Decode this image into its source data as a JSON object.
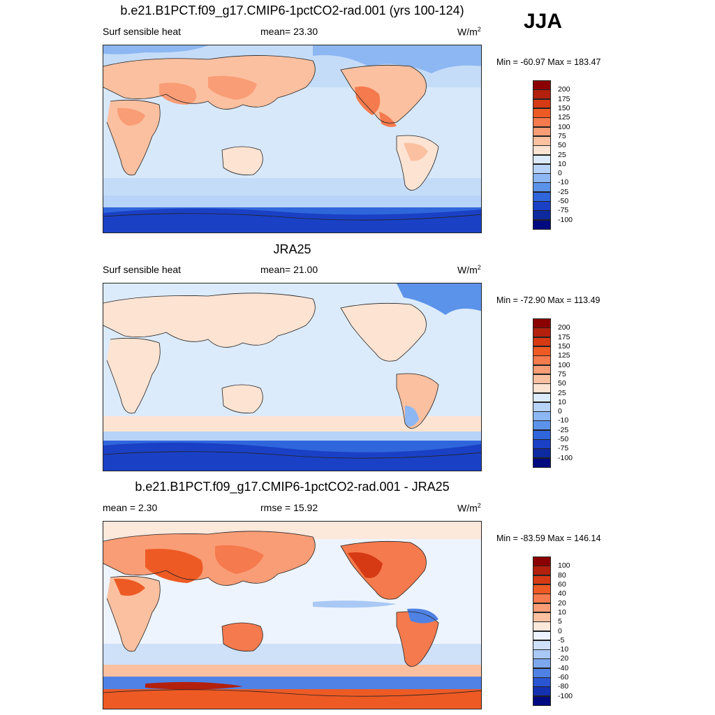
{
  "season": "JJA",
  "panels": [
    {
      "title": "b.e21.B1PCT.f09_g17.CMIP6-1pctCO2-rad.001 (yrs 100-124)",
      "left_label": "Surf sensible heat",
      "mid_label": "mean=  23.30",
      "units": "W/m",
      "units_sup": "2",
      "minmax": "Min = -60.97 Max = 183.47",
      "colorbar": {
        "labels": [
          "200",
          "175",
          "150",
          "125",
          "100",
          "75",
          "50",
          "25",
          "10",
          "0",
          "-10",
          "-25",
          "-50",
          "-75",
          "-100"
        ],
        "colors": [
          "#8b0000",
          "#b3200d",
          "#d63a14",
          "#ee5a24",
          "#f57a4d",
          "#f99d76",
          "#fbc0a0",
          "#fde3d2",
          "#dcebfb",
          "#b7d3f7",
          "#8db7f2",
          "#5c93ea",
          "#2f66dc",
          "#1a40c5",
          "#0e2aa0",
          "#000a80"
        ]
      }
    },
    {
      "title": "JRA25",
      "left_label": "Surf sensible heat",
      "mid_label": "mean=  21.00",
      "units": "W/m",
      "units_sup": "2",
      "minmax": "Min = -72.90 Max = 113.49",
      "colorbar": {
        "labels": [
          "200",
          "175",
          "150",
          "125",
          "100",
          "75",
          "50",
          "25",
          "10",
          "0",
          "-10",
          "-25",
          "-50",
          "-75",
          "-100"
        ],
        "colors": [
          "#8b0000",
          "#b3200d",
          "#d63a14",
          "#ee5a24",
          "#f57a4d",
          "#f99d76",
          "#fbc0a0",
          "#fde3d2",
          "#dcebfb",
          "#b7d3f7",
          "#8db7f2",
          "#5c93ea",
          "#2f66dc",
          "#1a40c5",
          "#0e2aa0",
          "#000a80"
        ]
      }
    },
    {
      "title": "b.e21.B1PCT.f09_g17.CMIP6-1pctCO2-rad.001 - JRA25",
      "left_label": "mean =   2.30",
      "mid_label": "rmse =  15.92",
      "units": "W/m",
      "units_sup": "2",
      "minmax": "Min = -83.59 Max = 146.14",
      "colorbar": {
        "labels": [
          "100",
          "80",
          "60",
          "40",
          "20",
          "10",
          "5",
          "0",
          "-5",
          "-10",
          "-20",
          "-40",
          "-60",
          "-80",
          "-100"
        ],
        "colors": [
          "#8b0000",
          "#b3200d",
          "#d63a14",
          "#ee5a24",
          "#f57a4d",
          "#f99d76",
          "#fbc0a0",
          "#fde8dc",
          "#eef4fd",
          "#cfe0f9",
          "#a9c8f5",
          "#7ea8ee",
          "#4f82e4",
          "#2a55d2",
          "#1431b0",
          "#000a80"
        ]
      }
    }
  ]
}
